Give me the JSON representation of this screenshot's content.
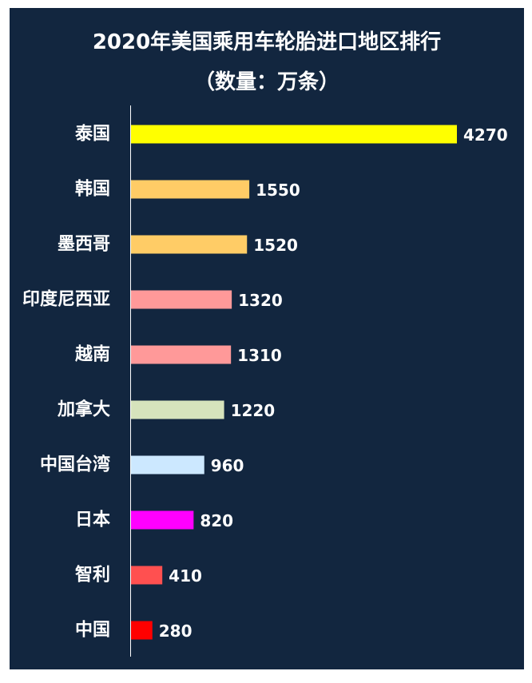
{
  "chart_data": {
    "type": "bar",
    "orientation": "horizontal",
    "title": "2020年美国乘用车轮胎进口地区排行",
    "subtitle": "（数量：万条）",
    "categories": [
      "泰国",
      "韩国",
      "墨西哥",
      "印度尼西亚",
      "越南",
      "加拿大",
      "中国台湾",
      "日本",
      "智利",
      "中国"
    ],
    "values": [
      4270,
      1550,
      1520,
      1320,
      1310,
      1220,
      960,
      820,
      410,
      280
    ],
    "colors": [
      "#ffff00",
      "#ffcc66",
      "#ffcc66",
      "#ff9999",
      "#ff9999",
      "#d6e3bc",
      "#cce8ff",
      "#ff00ff",
      "#ff5050",
      "#ff0000"
    ],
    "data_labels": [
      "4270",
      "1550",
      "1520",
      "1320",
      "1310",
      "1220",
      "960",
      "820",
      "410",
      "280"
    ],
    "xlim": [
      0,
      4270
    ],
    "grid": false,
    "legend": "none",
    "background": "#12263f"
  }
}
